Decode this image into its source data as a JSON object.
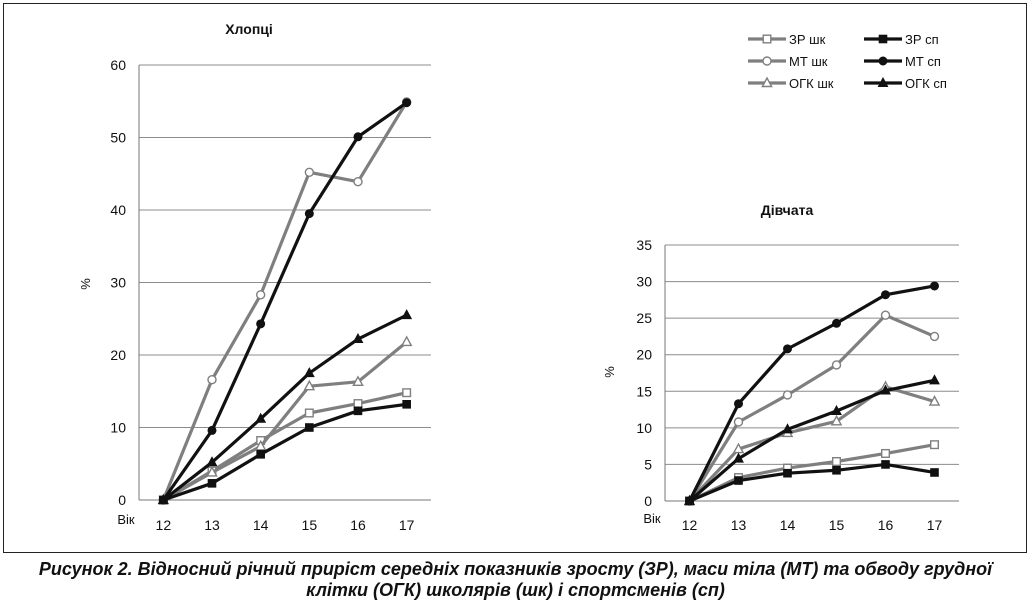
{
  "caption": {
    "line1": "Рисунок 2. Відносний річний приріст середніх показників зросту (ЗР), маси тіла (МТ) та обводу грудної",
    "line2": "клітки (ОГК) школярів (шк) і спортсменів (сп)"
  },
  "legend": [
    {
      "label": "ЗР шк",
      "color": "#7f7f7f",
      "marker": "square-open"
    },
    {
      "label": "ЗР сп",
      "color": "#111111",
      "marker": "square-filled"
    },
    {
      "label": "МТ шк",
      "color": "#7f7f7f",
      "marker": "circle-open"
    },
    {
      "label": "МТ сп",
      "color": "#111111",
      "marker": "circle-filled"
    },
    {
      "label": "ОГК шк",
      "color": "#7f7f7f",
      "marker": "triangle-open"
    },
    {
      "label": "ОГК сп",
      "color": "#111111",
      "marker": "triangle-filled"
    }
  ],
  "chart_data": [
    {
      "type": "line",
      "title": "Хлопці",
      "xlabel": "Вік",
      "ylabel": "%",
      "x": [
        12,
        13,
        14,
        15,
        16,
        17
      ],
      "ylim": [
        0,
        60
      ],
      "yticks": [
        0,
        10,
        20,
        30,
        40,
        50,
        60
      ],
      "grid": true,
      "legend_position": "top-right",
      "series": [
        {
          "name": "ЗР шк",
          "values": [
            0,
            4,
            8.2,
            12,
            13.3,
            14.8
          ]
        },
        {
          "name": "ЗР сп",
          "values": [
            0,
            2.3,
            6.3,
            10,
            12.3,
            13.2
          ]
        },
        {
          "name": "МТ шк",
          "values": [
            0,
            16.6,
            28.3,
            45.2,
            43.9,
            54.9
          ]
        },
        {
          "name": "МТ сп",
          "values": [
            0,
            9.6,
            24.3,
            39.5,
            50.1,
            54.8
          ]
        },
        {
          "name": "ОГК шк",
          "values": [
            0,
            3.8,
            7.4,
            15.7,
            16.3,
            21.8
          ]
        },
        {
          "name": "ОГК сп",
          "values": [
            0,
            5.2,
            11.2,
            17.5,
            22.2,
            25.5
          ]
        }
      ]
    },
    {
      "type": "line",
      "title": "Дівчата",
      "xlabel": "Вік",
      "ylabel": "%",
      "x": [
        12,
        13,
        14,
        15,
        16,
        17
      ],
      "ylim": [
        0,
        35
      ],
      "yticks": [
        0,
        5,
        10,
        15,
        20,
        25,
        30,
        35
      ],
      "grid": true,
      "series": [
        {
          "name": "ЗР шк",
          "values": [
            0,
            3.2,
            4.5,
            5.4,
            6.5,
            7.7
          ]
        },
        {
          "name": "ЗР сп",
          "values": [
            0,
            2.8,
            3.8,
            4.2,
            5.0,
            3.9
          ]
        },
        {
          "name": "МТ шк",
          "values": [
            0,
            10.8,
            14.5,
            18.6,
            25.4,
            22.5
          ]
        },
        {
          "name": "МТ сп",
          "values": [
            0,
            13.3,
            20.8,
            24.3,
            28.2,
            29.4
          ]
        },
        {
          "name": "ОГК шк",
          "values": [
            0,
            7.1,
            9.3,
            10.9,
            15.6,
            13.6
          ]
        },
        {
          "name": "ОГК сп",
          "values": [
            0,
            5.8,
            9.8,
            12.3,
            15.1,
            16.5
          ]
        }
      ]
    }
  ]
}
